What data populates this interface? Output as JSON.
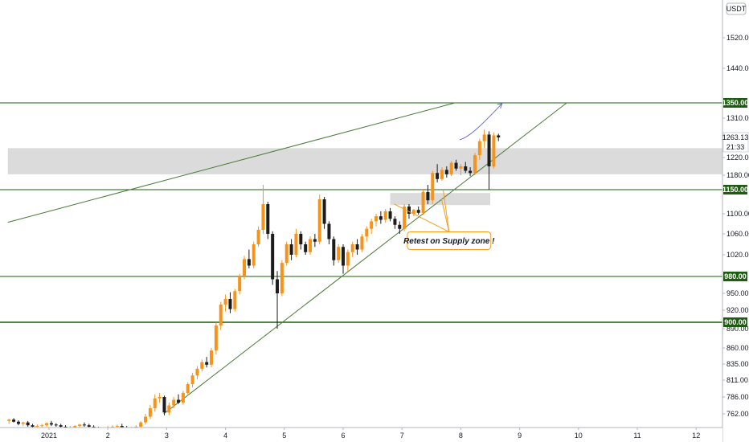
{
  "chart_data": {
    "type": "candlestick",
    "currency": "USDT",
    "y_axis": {
      "ticks": [
        "1520.00",
        "1440.00",
        "1310.00",
        "1220.00",
        "1180.00",
        "1100.00",
        "1060.00",
        "1020.00",
        "950.00",
        "920.00",
        "890.00",
        "860.00",
        "835.00",
        "811.00",
        "786.00",
        "762.00"
      ],
      "tick_values": [
        1520,
        1440,
        1310,
        1220,
        1180,
        1100,
        1060,
        1020,
        950,
        920,
        890,
        860,
        835,
        811,
        786,
        762
      ]
    },
    "x_axis": {
      "ticks": [
        "2021",
        "2",
        "3",
        "4",
        "5",
        "6",
        "7",
        "8",
        "9",
        "10",
        "11",
        "12"
      ],
      "tick_days": [
        1,
        2,
        3,
        4,
        5,
        6,
        7,
        8,
        9,
        10,
        11,
        12
      ]
    },
    "levels": [
      {
        "value": 1350,
        "label": "1350.00",
        "color": "#1e5c12"
      },
      {
        "value": 1150,
        "label": "1150.00",
        "color": "#1e5c12"
      },
      {
        "value": 980,
        "label": "980.00",
        "color": "#1e5c12"
      },
      {
        "value": 900,
        "label": "900.00",
        "color": "#1e5c12"
      }
    ],
    "last_price": {
      "value": "1263.13",
      "countdown": "21:33"
    },
    "zones": [
      {
        "name": "supply-zone",
        "from": 1182,
        "to": 1240,
        "x_from_day": 0.3,
        "x_to_day": 12.8,
        "color": "#d9d9d9"
      },
      {
        "name": "retest-zone",
        "from": 1118,
        "to": 1143,
        "x_from_day": 6.8,
        "x_to_day": 8.5,
        "color": "#d9d9d9"
      }
    ],
    "trendlines": [
      {
        "name": "upper-channel",
        "x1": 0.3,
        "y1": 1083,
        "x2": 7.9,
        "y2": 1350,
        "color": "#4a7a38"
      },
      {
        "name": "rising-support",
        "x1": 2.95,
        "y1": 762,
        "x2": 9.8,
        "y2": 1350,
        "color": "#4a7a38"
      }
    ],
    "projection": {
      "points": [
        [
          7.98,
          1258
        ],
        [
          8.15,
          1263
        ],
        [
          8.4,
          1300
        ],
        [
          8.7,
          1348
        ]
      ],
      "color": "#6b6bdb"
    },
    "annotation": {
      "text": "Retest on Supply zone !",
      "day": 7.8,
      "price": 1047,
      "border": "#f59d1f",
      "targets": [
        [
          6.87,
          1120
        ],
        [
          7.67,
          1131
        ],
        [
          7.7,
          1150
        ]
      ]
    },
    "candle_colors": {
      "up": "#f7931a",
      "down": "#1c1c1c"
    },
    "candles": [
      [
        0.32,
        752,
        755,
        748,
        754
      ],
      [
        0.4,
        754,
        756,
        750,
        751
      ],
      [
        0.48,
        751,
        753,
        746,
        748
      ],
      [
        0.56,
        748,
        751,
        745,
        750
      ],
      [
        0.64,
        750,
        752,
        744,
        746
      ],
      [
        0.72,
        746,
        748,
        742,
        744
      ],
      [
        0.8,
        744,
        747,
        741,
        745
      ],
      [
        0.88,
        745,
        748,
        743,
        746
      ],
      [
        0.96,
        746,
        750,
        744,
        749
      ],
      [
        1.04,
        749,
        752,
        745,
        747
      ],
      [
        1.12,
        747,
        749,
        744,
        746
      ],
      [
        1.2,
        746,
        748,
        742,
        744
      ],
      [
        1.28,
        744,
        746,
        740,
        742
      ],
      [
        1.36,
        742,
        745,
        740,
        743
      ],
      [
        1.44,
        743,
        746,
        741,
        745
      ],
      [
        1.52,
        745,
        748,
        743,
        747
      ],
      [
        1.6,
        747,
        750,
        744,
        746
      ],
      [
        1.68,
        746,
        748,
        742,
        744
      ],
      [
        1.76,
        744,
        746,
        740,
        742
      ],
      [
        1.84,
        742,
        744,
        738,
        740
      ],
      [
        1.92,
        740,
        743,
        738,
        742
      ],
      [
        2.0,
        742,
        745,
        740,
        743
      ],
      [
        2.08,
        743,
        746,
        741,
        744
      ],
      [
        2.16,
        744,
        747,
        742,
        745
      ],
      [
        2.24,
        745,
        748,
        742,
        743
      ],
      [
        2.32,
        743,
        745,
        740,
        741
      ],
      [
        2.4,
        741,
        744,
        739,
        742
      ],
      [
        2.48,
        742,
        746,
        740,
        744
      ],
      [
        2.56,
        744,
        752,
        742,
        750
      ],
      [
        2.64,
        750,
        762,
        747,
        758
      ],
      [
        2.72,
        758,
        775,
        755,
        770
      ],
      [
        2.8,
        770,
        790,
        765,
        784
      ],
      [
        2.88,
        784,
        792,
        778,
        786
      ],
      [
        2.96,
        786,
        788,
        760,
        764
      ],
      [
        3.04,
        764,
        778,
        760,
        774
      ],
      [
        3.12,
        774,
        786,
        770,
        782
      ],
      [
        3.2,
        782,
        790,
        776,
        778
      ],
      [
        3.28,
        778,
        795,
        775,
        792
      ],
      [
        3.36,
        792,
        808,
        788,
        805
      ],
      [
        3.44,
        805,
        822,
        800,
        818
      ],
      [
        3.52,
        818,
        832,
        812,
        828
      ],
      [
        3.6,
        828,
        842,
        824,
        838
      ],
      [
        3.68,
        838,
        846,
        830,
        834
      ],
      [
        3.76,
        834,
        860,
        830,
        856
      ],
      [
        3.84,
        856,
        900,
        850,
        895
      ],
      [
        3.92,
        895,
        935,
        888,
        930
      ],
      [
        4.0,
        930,
        948,
        918,
        940
      ],
      [
        4.08,
        940,
        952,
        915,
        922
      ],
      [
        4.16,
        922,
        958,
        918,
        954
      ],
      [
        4.24,
        954,
        985,
        948,
        980
      ],
      [
        4.32,
        980,
        1018,
        975,
        1012
      ],
      [
        4.4,
        1012,
        1030,
        995,
        1000
      ],
      [
        4.48,
        1000,
        1045,
        995,
        1040
      ],
      [
        4.56,
        1040,
        1075,
        1035,
        1068
      ],
      [
        4.64,
        1068,
        1160,
        1060,
        1120
      ],
      [
        4.72,
        1120,
        1125,
        1050,
        1060
      ],
      [
        4.8,
        1060,
        1065,
        965,
        975
      ],
      [
        4.88,
        975,
        990,
        890,
        950
      ],
      [
        4.96,
        950,
        1010,
        945,
        1005
      ],
      [
        5.04,
        1005,
        1045,
        1000,
        1040
      ],
      [
        5.12,
        1040,
        1050,
        1010,
        1020
      ],
      [
        5.2,
        1020,
        1070,
        1015,
        1060
      ],
      [
        5.28,
        1060,
        1065,
        1030,
        1040
      ],
      [
        5.36,
        1040,
        1045,
        1020,
        1025
      ],
      [
        5.44,
        1025,
        1055,
        1020,
        1050
      ],
      [
        5.52,
        1050,
        1060,
        1035,
        1045
      ],
      [
        5.6,
        1045,
        1140,
        1040,
        1130
      ],
      [
        5.68,
        1130,
        1135,
        1070,
        1080
      ],
      [
        5.76,
        1080,
        1085,
        1040,
        1050
      ],
      [
        5.84,
        1050,
        1055,
        1000,
        1010
      ],
      [
        5.92,
        1010,
        1040,
        1005,
        1035
      ],
      [
        6.0,
        1035,
        1040,
        985,
        1000
      ],
      [
        6.08,
        1000,
        1030,
        990,
        1025
      ],
      [
        6.16,
        1025,
        1045,
        1015,
        1040
      ],
      [
        6.24,
        1040,
        1050,
        1020,
        1030
      ],
      [
        6.32,
        1030,
        1060,
        1025,
        1055
      ],
      [
        6.4,
        1055,
        1075,
        1045,
        1070
      ],
      [
        6.48,
        1070,
        1090,
        1060,
        1085
      ],
      [
        6.56,
        1085,
        1100,
        1075,
        1095
      ],
      [
        6.64,
        1095,
        1105,
        1080,
        1088
      ],
      [
        6.72,
        1088,
        1110,
        1082,
        1105
      ],
      [
        6.8,
        1105,
        1112,
        1085,
        1090
      ],
      [
        6.88,
        1090,
        1095,
        1070,
        1078
      ],
      [
        6.96,
        1078,
        1085,
        1060,
        1070
      ],
      [
        7.04,
        1070,
        1120,
        1065,
        1115
      ],
      [
        7.12,
        1115,
        1120,
        1090,
        1100
      ],
      [
        7.2,
        1100,
        1110,
        1095,
        1108
      ],
      [
        7.28,
        1108,
        1115,
        1098,
        1102
      ],
      [
        7.36,
        1102,
        1150,
        1098,
        1145
      ],
      [
        7.44,
        1145,
        1160,
        1120,
        1128
      ],
      [
        7.52,
        1128,
        1190,
        1120,
        1185
      ],
      [
        7.6,
        1185,
        1205,
        1165,
        1172
      ],
      [
        7.68,
        1172,
        1198,
        1168,
        1192
      ],
      [
        7.76,
        1192,
        1200,
        1175,
        1182
      ],
      [
        7.84,
        1182,
        1212,
        1178,
        1208
      ],
      [
        7.92,
        1208,
        1215,
        1190,
        1195
      ],
      [
        8.0,
        1195,
        1205,
        1180,
        1200
      ],
      [
        8.08,
        1200,
        1210,
        1185,
        1190
      ],
      [
        8.16,
        1190,
        1198,
        1178,
        1185
      ],
      [
        8.24,
        1185,
        1230,
        1180,
        1225
      ],
      [
        8.32,
        1225,
        1260,
        1215,
        1255
      ],
      [
        8.4,
        1255,
        1282,
        1240,
        1270
      ],
      [
        8.48,
        1270,
        1278,
        1150,
        1200
      ],
      [
        8.56,
        1200,
        1275,
        1195,
        1268
      ],
      [
        8.64,
        1268,
        1272,
        1255,
        1263
      ]
    ]
  }
}
